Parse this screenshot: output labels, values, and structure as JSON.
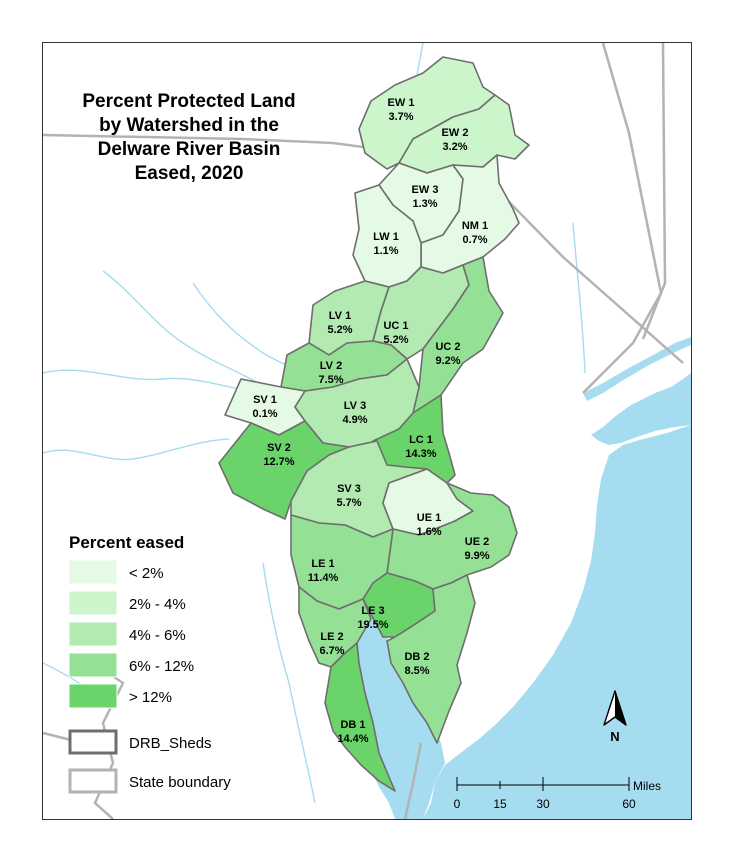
{
  "title": {
    "lines": [
      "Percent Protected Land",
      "by Watershed in the",
      "Delware River Basin",
      "Eased, 2020"
    ]
  },
  "colors": {
    "ocean": "#a6dcef",
    "rivers": "#a6dcef",
    "state_boundary": "#b3b3b3",
    "shed_outline": "#6e6e6e",
    "class_lt2": "#e5fae5",
    "class_2_4": "#ccf5cc",
    "class_4_6": "#b2eab2",
    "class_6_12": "#94e094",
    "class_gt12": "#6ad46a"
  },
  "watersheds": [
    {
      "name": "EW 1",
      "pct": "3.7%",
      "class": "class_2_4"
    },
    {
      "name": "EW 2",
      "pct": "3.2%",
      "class": "class_2_4"
    },
    {
      "name": "EW 3",
      "pct": "1.3%",
      "class": "class_lt2"
    },
    {
      "name": "NM 1",
      "pct": "0.7%",
      "class": "class_lt2"
    },
    {
      "name": "LW 1",
      "pct": "1.1%",
      "class": "class_lt2"
    },
    {
      "name": "LV 1",
      "pct": "5.2%",
      "class": "class_4_6"
    },
    {
      "name": "UC 1",
      "pct": "5.2%",
      "class": "class_4_6"
    },
    {
      "name": "UC 2",
      "pct": "9.2%",
      "class": "class_6_12"
    },
    {
      "name": "LV 2",
      "pct": "7.5%",
      "class": "class_6_12"
    },
    {
      "name": "SV 1",
      "pct": "0.1%",
      "class": "class_lt2"
    },
    {
      "name": "LV 3",
      "pct": "4.9%",
      "class": "class_4_6"
    },
    {
      "name": "SV 2",
      "pct": "12.7%",
      "class": "class_gt12"
    },
    {
      "name": "LC 1",
      "pct": "14.3%",
      "class": "class_gt12"
    },
    {
      "name": "SV 3",
      "pct": "5.7%",
      "class": "class_4_6"
    },
    {
      "name": "UE 1",
      "pct": "1.6%",
      "class": "class_lt2"
    },
    {
      "name": "UE 2",
      "pct": "9.9%",
      "class": "class_6_12"
    },
    {
      "name": "LE 1",
      "pct": "11.4%",
      "class": "class_6_12"
    },
    {
      "name": "LE 3",
      "pct": "19.5%",
      "class": "class_gt12"
    },
    {
      "name": "LE 2",
      "pct": "6.7%",
      "class": "class_6_12"
    },
    {
      "name": "DB 2",
      "pct": "8.5%",
      "class": "class_6_12"
    },
    {
      "name": "DB 1",
      "pct": "14.4%",
      "class": "class_gt12"
    }
  ],
  "legend": {
    "title": "Percent eased",
    "items": [
      {
        "label": "< 2%",
        "class": "class_lt2"
      },
      {
        "label": "2% - 4%",
        "class": "class_2_4"
      },
      {
        "label": "4% - 6%",
        "class": "class_4_6"
      },
      {
        "label": "6% - 12%",
        "class": "class_6_12"
      },
      {
        "label": "> 12%",
        "class": "class_gt12"
      }
    ],
    "sheds_label": "DRB_Sheds",
    "state_label": "State boundary"
  },
  "scale_bar": {
    "unit": "Miles",
    "ticks": [
      "0",
      "15",
      "30",
      "60"
    ]
  },
  "north_arrow": {
    "label": "N",
    "icon": "north-arrow-icon"
  }
}
